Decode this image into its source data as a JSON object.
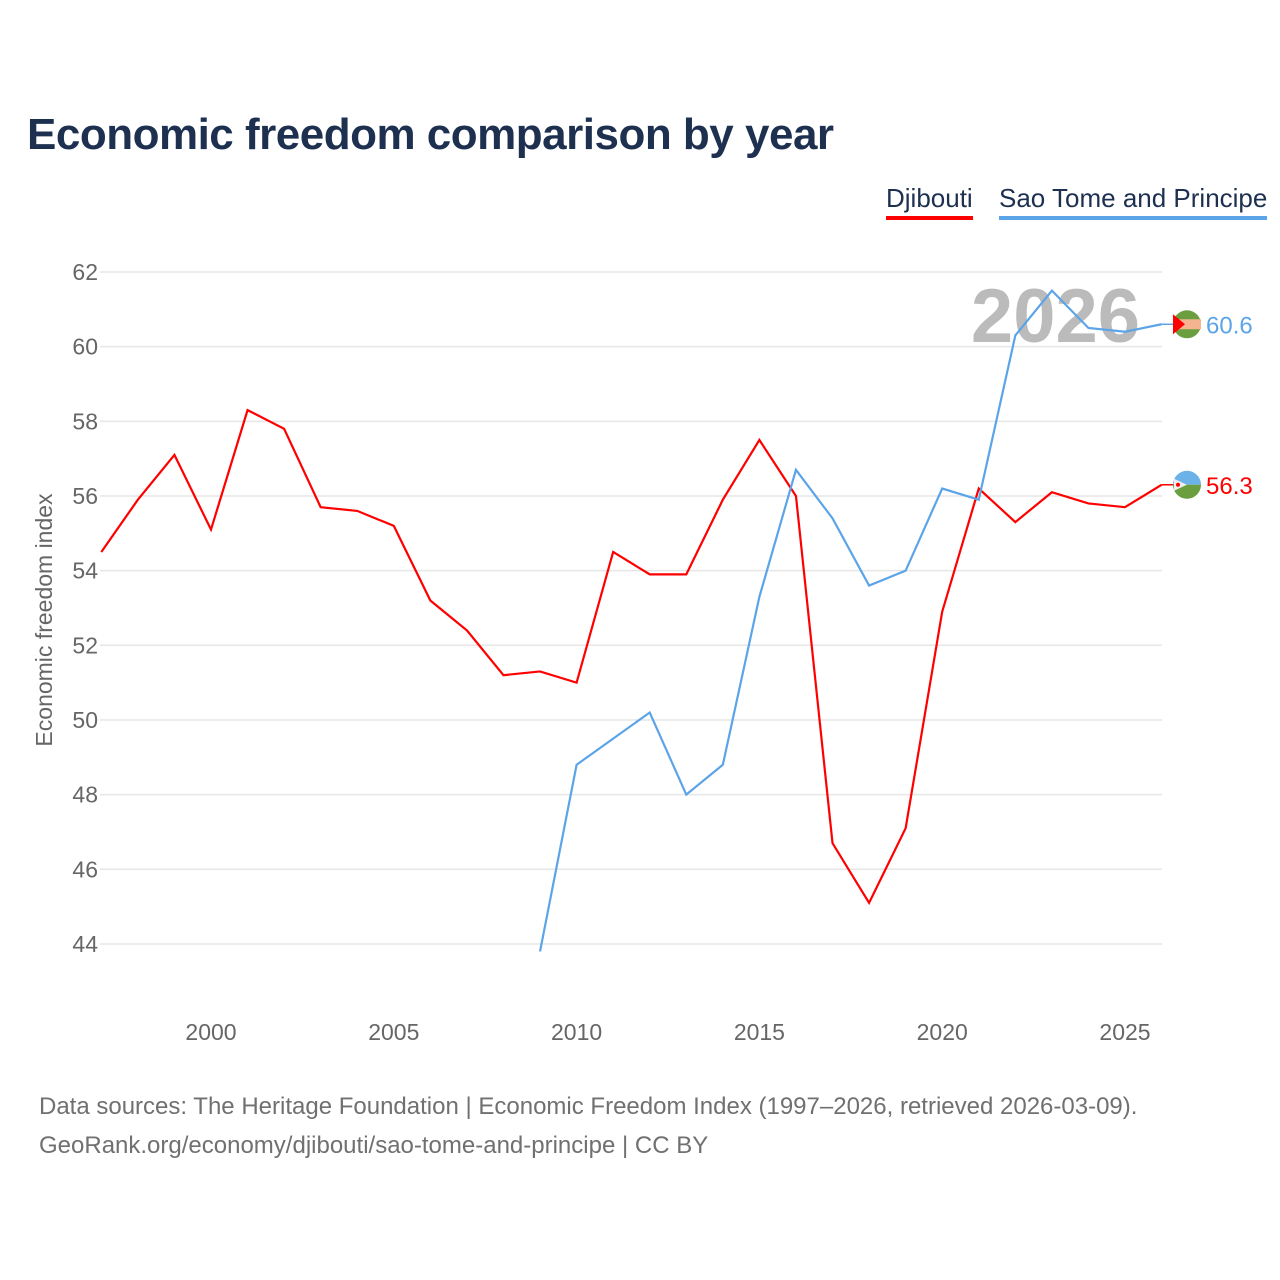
{
  "chart_data": {
    "type": "line",
    "title": "Economic freedom comparison by year",
    "xlabel": "",
    "ylabel": "Economic freedom index",
    "xlim": [
      1997,
      2026
    ],
    "ylim": [
      43,
      62.5
    ],
    "yticks": [
      44,
      46,
      48,
      50,
      52,
      54,
      56,
      58,
      60,
      62
    ],
    "xticks": [
      2000,
      2005,
      2010,
      2015,
      2020,
      2025
    ],
    "year_overlay": "2026",
    "legend_position": "top-right",
    "series": [
      {
        "name": "Djibouti",
        "color": "#ff0000",
        "end_label": "56.3",
        "x": [
          1997,
          1998,
          1999,
          2000,
          2001,
          2002,
          2003,
          2004,
          2005,
          2006,
          2007,
          2008,
          2009,
          2010,
          2011,
          2012,
          2013,
          2014,
          2015,
          2016,
          2017,
          2018,
          2019,
          2020,
          2021,
          2022,
          2023,
          2024,
          2025,
          2026
        ],
        "values": [
          54.5,
          55.9,
          57.1,
          55.1,
          58.3,
          57.8,
          55.7,
          55.6,
          55.2,
          53.2,
          52.4,
          51.2,
          51.3,
          51.0,
          54.5,
          53.9,
          53.9,
          55.9,
          57.5,
          56.0,
          46.7,
          45.1,
          47.1,
          52.9,
          56.2,
          55.3,
          56.1,
          55.8,
          55.7,
          56.3
        ]
      },
      {
        "name": "Sao Tome and Principe",
        "color": "#5ca4e8",
        "end_label": "60.6",
        "x": [
          2009,
          2010,
          2011,
          2012,
          2013,
          2014,
          2015,
          2016,
          2017,
          2018,
          2019,
          2020,
          2021,
          2022,
          2023,
          2024,
          2025,
          2026
        ],
        "values": [
          43.8,
          48.8,
          49.5,
          50.2,
          48.0,
          48.8,
          53.3,
          56.7,
          55.4,
          53.6,
          54.0,
          56.2,
          55.9,
          60.3,
          61.5,
          60.5,
          60.4,
          60.6
        ]
      }
    ]
  },
  "source": {
    "line1": "Data sources: The Heritage Foundation | Economic Freedom Index (1997–2026, retrieved 2026-03-09).",
    "line2": "GeoRank.org/economy/djibouti/sao-tome-and-principe | CC BY"
  }
}
